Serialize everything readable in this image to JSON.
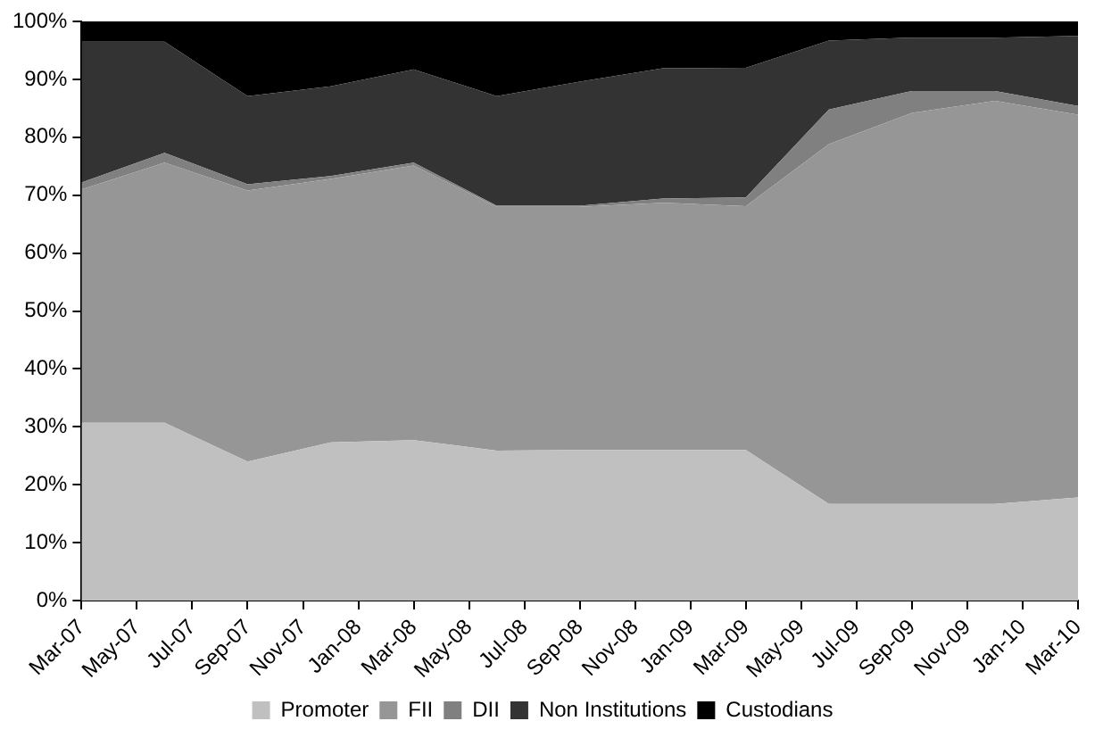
{
  "chart_data": {
    "type": "area",
    "stacked": true,
    "legend": "bottom",
    "x": [
      "2007-03",
      "2007-06",
      "2007-09",
      "2007-12",
      "2008-03",
      "2008-06",
      "2008-09",
      "2008-12",
      "2009-03",
      "2009-06",
      "2009-09",
      "2009-12",
      "2010-03"
    ],
    "xlim": [
      "2007-03",
      "2010-03"
    ],
    "xticks": [
      {
        "value": "2007-03",
        "label": "Mar-07"
      },
      {
        "value": "2007-05",
        "label": "May-07"
      },
      {
        "value": "2007-07",
        "label": "Jul-07"
      },
      {
        "value": "2007-09",
        "label": "Sep-07"
      },
      {
        "value": "2007-11",
        "label": "Nov-07"
      },
      {
        "value": "2008-01",
        "label": "Jan-08"
      },
      {
        "value": "2008-03",
        "label": "Mar-08"
      },
      {
        "value": "2008-05",
        "label": "May-08"
      },
      {
        "value": "2008-07",
        "label": "Jul-08"
      },
      {
        "value": "2008-09",
        "label": "Sep-08"
      },
      {
        "value": "2008-11",
        "label": "Nov-08"
      },
      {
        "value": "2009-01",
        "label": "Jan-09"
      },
      {
        "value": "2009-03",
        "label": "Mar-09"
      },
      {
        "value": "2009-05",
        "label": "May-09"
      },
      {
        "value": "2009-07",
        "label": "Jul-09"
      },
      {
        "value": "2009-09",
        "label": "Sep-09"
      },
      {
        "value": "2009-11",
        "label": "Nov-09"
      },
      {
        "value": "2010-01",
        "label": "Jan-10"
      },
      {
        "value": "2010-03",
        "label": "Mar-10"
      }
    ],
    "ylim": [
      0,
      100
    ],
    "yticks": [
      {
        "value": 0,
        "label": "0%"
      },
      {
        "value": 10,
        "label": "10%"
      },
      {
        "value": 20,
        "label": "20%"
      },
      {
        "value": 30,
        "label": "30%"
      },
      {
        "value": 40,
        "label": "40%"
      },
      {
        "value": 50,
        "label": "50%"
      },
      {
        "value": 60,
        "label": "60%"
      },
      {
        "value": 70,
        "label": "70%"
      },
      {
        "value": 80,
        "label": "80%"
      },
      {
        "value": 90,
        "label": "90%"
      },
      {
        "value": 100,
        "label": "100%"
      }
    ],
    "series": [
      {
        "name": "Promoter",
        "color": "#c0c0c0",
        "values": [
          30.7,
          30.7,
          24,
          27.3,
          27.7,
          25.9,
          26,
          26,
          26,
          16.7,
          16.7,
          16.7,
          17.8
        ]
      },
      {
        "name": "FII",
        "color": "#969696",
        "values": [
          40.3,
          44.9,
          46.8,
          45.5,
          47.4,
          42.1,
          42,
          42.7,
          42.1,
          62.1,
          67.5,
          69.6,
          66.1
        ]
      },
      {
        "name": "DII",
        "color": "#808080",
        "values": [
          1.2,
          1.7,
          1.1,
          0.5,
          0.5,
          0.2,
          0.2,
          0.7,
          1.5,
          6,
          3.8,
          1.7,
          1.5
        ]
      },
      {
        "name": "Non Institutions",
        "color": "#333333",
        "values": [
          24.3,
          19.2,
          15.2,
          15.5,
          16.1,
          18.9,
          21.4,
          22.5,
          22.4,
          11.9,
          9.2,
          9.2,
          12.1
        ]
      },
      {
        "name": "Custodians",
        "color": "#000000",
        "values": [
          3.5,
          3.5,
          12.9,
          11.2,
          8.3,
          12.9,
          10.4,
          8.1,
          8,
          3.3,
          2.8,
          2.8,
          2.5
        ]
      }
    ]
  }
}
